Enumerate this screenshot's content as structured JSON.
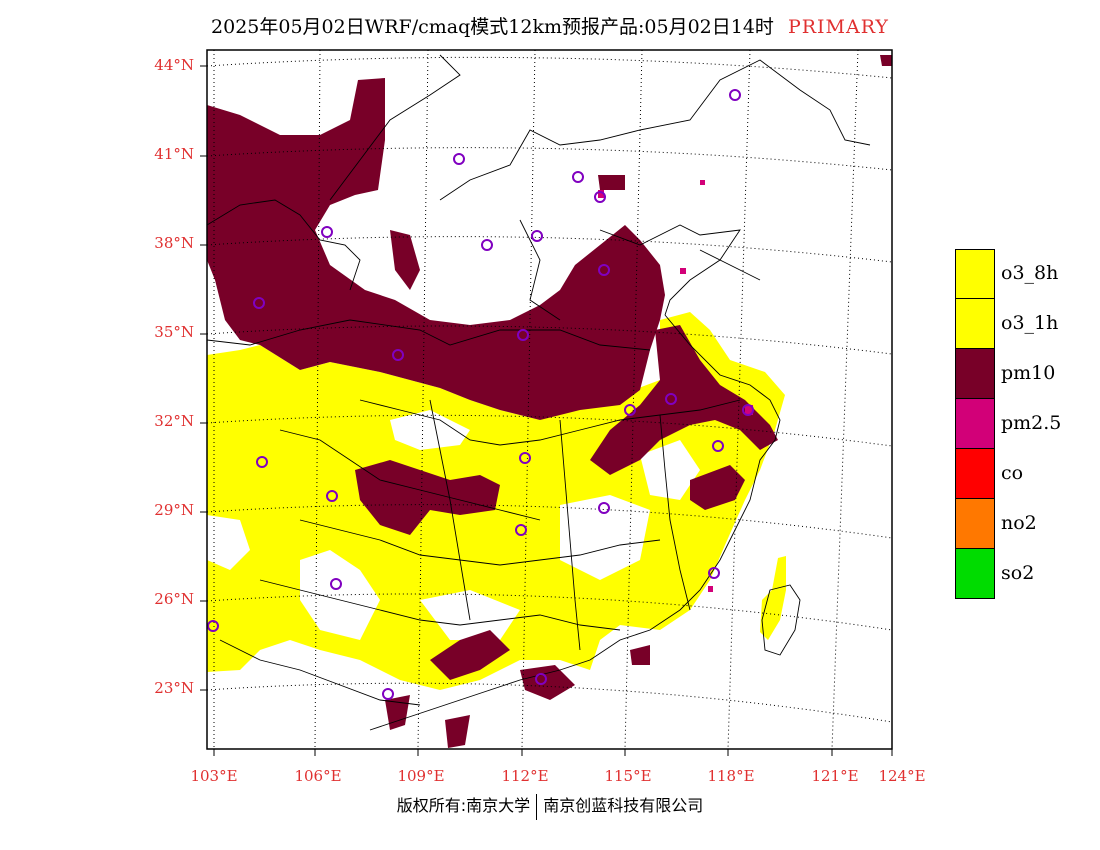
{
  "title": {
    "main": "2025年05月02日WRF/cmaq模式12km预报产品:05月02日14时",
    "tag": "PRIMARY"
  },
  "lat_labels": [
    "44°N",
    "41°N",
    "38°N",
    "35°N",
    "32°N",
    "29°N",
    "26°N",
    "23°N"
  ],
  "lon_labels": [
    "103°E",
    "106°E",
    "109°E",
    "112°E",
    "115°E",
    "118°E",
    "121°E",
    "124°E"
  ],
  "legend": [
    {
      "label": "o3_8h",
      "color": "#ffff00"
    },
    {
      "label": "o3_1h",
      "color": "#ffff00"
    },
    {
      "label": "pm10",
      "color": "#780028"
    },
    {
      "label": "pm2.5",
      "color": "#d20078"
    },
    {
      "label": "co",
      "color": "#ff0000"
    },
    {
      "label": "no2",
      "color": "#ff7800"
    },
    {
      "label": "so2",
      "color": "#00dc00"
    }
  ],
  "copyright": {
    "left": "版权所有:南京大学",
    "right": "南京创蓝科技有限公司"
  },
  "colors": {
    "label_red": "#e03030",
    "station_marker": "#8000c0",
    "boundary": "#000000"
  }
}
